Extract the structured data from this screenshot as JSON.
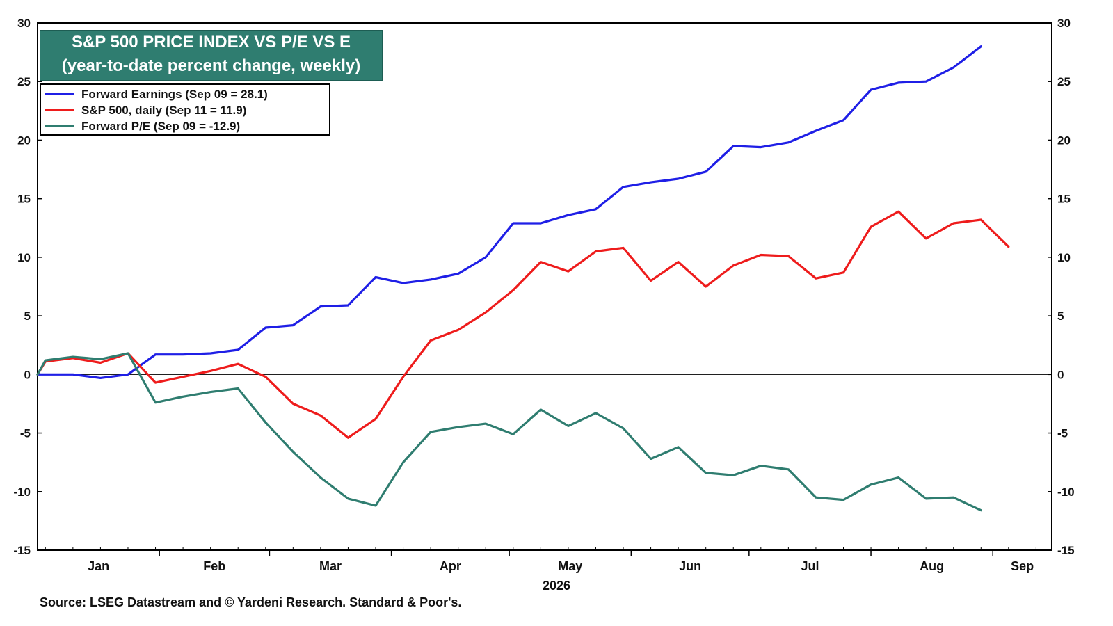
{
  "title_lines": [
    "S&P 500 PRICE INDEX VS P/E VS E",
    "(year-to-date percent change, weekly)"
  ],
  "source": "Source: LSEG Datastream and © Yardeni Research. Standard & Poor's.",
  "colors": {
    "forward_earnings": "#1f1fe6",
    "sp500": "#ee1c1c",
    "forward_pe": "#2f7d70",
    "title_bg": "#2f7d70"
  },
  "chart_data": {
    "type": "line",
    "x_axis_label": "2026",
    "month_labels": [
      "Jan",
      "Feb",
      "Mar",
      "Apr",
      "May",
      "Jun",
      "Jul",
      "Aug",
      "Sep"
    ],
    "ylim": [
      -15,
      30
    ],
    "yticks": [
      -15,
      -10,
      -5,
      0,
      5,
      10,
      15,
      20,
      25,
      30
    ],
    "zero_line": true,
    "grid": false,
    "legend_position": "top-left",
    "series": [
      {
        "name": "Forward Earnings (Sep 09 = 28.1)",
        "color": "#1f1fe6",
        "points": [
          [
            "Jan 1",
            0
          ],
          [
            "Jan 3",
            0
          ],
          [
            "Jan 10",
            0
          ],
          [
            "Jan 17",
            -0.3
          ],
          [
            "Jan 24",
            0
          ],
          [
            "Jan 31",
            1.7
          ],
          [
            "Feb 7",
            1.7
          ],
          [
            "Feb 14",
            1.8
          ],
          [
            "Feb 21",
            2.1
          ],
          [
            "Feb 28",
            4
          ],
          [
            "Mar 7",
            4.2
          ],
          [
            "Mar 14",
            5.8
          ],
          [
            "Mar 21",
            5.9
          ],
          [
            "Mar 28",
            8.3
          ],
          [
            "Apr 4",
            7.8
          ],
          [
            "Apr 11",
            8.1
          ],
          [
            "Apr 18",
            8.6
          ],
          [
            "Apr 25",
            10
          ],
          [
            "May 2",
            12.9
          ],
          [
            "May 9",
            12.9
          ],
          [
            "May 16",
            13.6
          ],
          [
            "May 23",
            14.1
          ],
          [
            "May 30",
            16
          ],
          [
            "Jun 6",
            16.4
          ],
          [
            "Jun 13",
            16.7
          ],
          [
            "Jun 20",
            17.3
          ],
          [
            "Jun 27",
            19.5
          ],
          [
            "Jul 4",
            19.4
          ],
          [
            "Jul 11",
            19.8
          ],
          [
            "Jul 18",
            20.8
          ],
          [
            "Jul 25",
            21.7
          ],
          [
            "Aug 1",
            24.3
          ],
          [
            "Aug 8",
            24.9
          ],
          [
            "Aug 15",
            25
          ],
          [
            "Aug 22",
            26.2
          ],
          [
            "Aug 29",
            28
          ]
        ]
      },
      {
        "name": "S&P 500, daily (Sep 11 = 11.9)",
        "color": "#ee1c1c",
        "points": [
          [
            "Jan 1",
            0
          ],
          [
            "Jan 3",
            1.1
          ],
          [
            "Jan 10",
            1.4
          ],
          [
            "Jan 17",
            1
          ],
          [
            "Jan 24",
            1.8
          ],
          [
            "Jan 31",
            -0.7
          ],
          [
            "Feb 7",
            -0.2
          ],
          [
            "Feb 14",
            0.3
          ],
          [
            "Feb 21",
            0.9
          ],
          [
            "Feb 28",
            -0.2
          ],
          [
            "Mar 7",
            -2.5
          ],
          [
            "Mar 14",
            -3.5
          ],
          [
            "Mar 21",
            -5.4
          ],
          [
            "Mar 28",
            -3.8
          ],
          [
            "Apr 4",
            -0.2
          ],
          [
            "Apr 11",
            2.9
          ],
          [
            "Apr 18",
            3.8
          ],
          [
            "Apr 25",
            5.3
          ],
          [
            "May 2",
            7.2
          ],
          [
            "May 9",
            9.6
          ],
          [
            "May 16",
            8.8
          ],
          [
            "May 23",
            10.5
          ],
          [
            "May 30",
            10.8
          ],
          [
            "Jun 6",
            8
          ],
          [
            "Jun 13",
            9.6
          ],
          [
            "Jun 20",
            7.5
          ],
          [
            "Jun 27",
            9.3
          ],
          [
            "Jul 4",
            10.2
          ],
          [
            "Jul 11",
            10.1
          ],
          [
            "Jul 18",
            8.2
          ],
          [
            "Jul 25",
            8.7
          ],
          [
            "Aug 1",
            12.6
          ],
          [
            "Aug 8",
            13.9
          ],
          [
            "Aug 15",
            11.6
          ],
          [
            "Aug 22",
            12.9
          ],
          [
            "Aug 29",
            13.2
          ],
          [
            "Sep 5",
            10.9
          ]
        ]
      },
      {
        "name": "Forward P/E (Sep 09 = -12.9)",
        "color": "#2f7d70",
        "points": [
          [
            "Jan 1",
            0
          ],
          [
            "Jan 3",
            1.2
          ],
          [
            "Jan 10",
            1.5
          ],
          [
            "Jan 17",
            1.3
          ],
          [
            "Jan 24",
            1.8
          ],
          [
            "Jan 31",
            -2.4
          ],
          [
            "Feb 7",
            -1.9
          ],
          [
            "Feb 14",
            -1.5
          ],
          [
            "Feb 21",
            -1.2
          ],
          [
            "Feb 28",
            -4.1
          ],
          [
            "Mar 7",
            -6.6
          ],
          [
            "Mar 14",
            -8.8
          ],
          [
            "Mar 21",
            -10.6
          ],
          [
            "Mar 28",
            -11.2
          ],
          [
            "Apr 4",
            -7.5
          ],
          [
            "Apr 11",
            -4.9
          ],
          [
            "Apr 18",
            -4.5
          ],
          [
            "Apr 25",
            -4.2
          ],
          [
            "May 2",
            -5.1
          ],
          [
            "May 9",
            -3
          ],
          [
            "May 16",
            -4.4
          ],
          [
            "May 23",
            -3.3
          ],
          [
            "May 30",
            -4.6
          ],
          [
            "Jun 6",
            -7.2
          ],
          [
            "Jun 13",
            -6.2
          ],
          [
            "Jun 20",
            -8.4
          ],
          [
            "Jun 27",
            -8.6
          ],
          [
            "Jul 4",
            -7.8
          ],
          [
            "Jul 11",
            -8.1
          ],
          [
            "Jul 18",
            -10.5
          ],
          [
            "Jul 25",
            -10.7
          ],
          [
            "Aug 1",
            -9.4
          ],
          [
            "Aug 8",
            -8.8
          ],
          [
            "Aug 15",
            -10.6
          ],
          [
            "Aug 22",
            -10.5
          ],
          [
            "Aug 29",
            -11.6
          ]
        ]
      }
    ]
  }
}
